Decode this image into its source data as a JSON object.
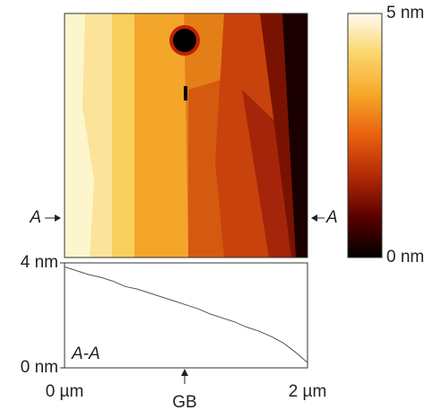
{
  "chart_data": [
    {
      "type": "line",
      "annotation": "A-A",
      "marker_label": "GB",
      "section_labels": [
        "A",
        "A"
      ],
      "x": [
        0,
        0.1,
        0.2,
        0.3,
        0.4,
        0.5,
        0.6,
        0.7,
        0.8,
        0.9,
        1.0,
        1.1,
        1.2,
        1.3,
        1.4,
        1.5,
        1.6,
        1.7,
        1.8,
        1.9,
        2.0
      ],
      "series": [
        {
          "color": "#555555",
          "values": [
            3.85,
            3.7,
            3.55,
            3.45,
            3.3,
            3.1,
            3.0,
            2.85,
            2.7,
            2.55,
            2.4,
            2.25,
            2.05,
            1.9,
            1.75,
            1.55,
            1.4,
            1.2,
            0.95,
            0.6,
            0.2
          ]
        }
      ],
      "xlim": [
        0,
        2
      ],
      "xticks": [
        {
          "value": 0,
          "label": "0 µm"
        },
        {
          "value": 2,
          "label": "2 µm"
        }
      ],
      "ylim": [
        0,
        4
      ],
      "yticks": [
        {
          "value": 0,
          "label": "0 nm"
        },
        {
          "value": 4,
          "label": "4 nm"
        }
      ]
    },
    {
      "type": "colorbar",
      "clim": [
        0,
        5
      ],
      "ticks": [
        {
          "value": 0,
          "label": "0 nm"
        },
        {
          "value": 5,
          "label": "5 nm"
        }
      ],
      "colors": [
        "#000000",
        "#5a0000",
        "#b22a06",
        "#e8600e",
        "#f6a72a",
        "#fbd66a",
        "#fffbf0"
      ]
    }
  ]
}
